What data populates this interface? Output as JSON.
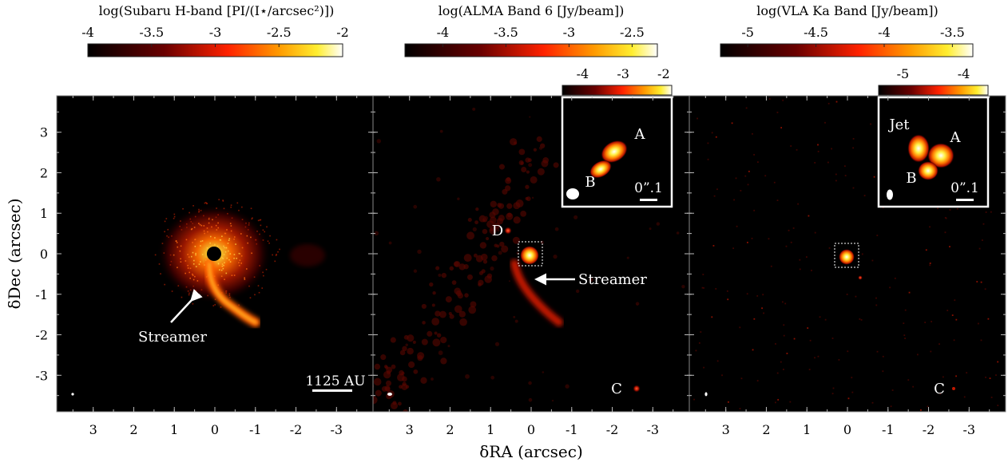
{
  "chart_data": [
    {
      "type": "heatmap",
      "panel": "Subaru H-band",
      "colorbar": {
        "label": "log(Subaru H-band [PI/(I⋆/arcsec²)])",
        "ticks": [
          "-4",
          "-3.5",
          "-3",
          "-2.5",
          "-2"
        ],
        "range": [
          -4,
          -2
        ]
      },
      "annotations": {
        "streamer": "Streamer",
        "scalebar": "1125 AU"
      },
      "xticks": [
        "3",
        "2",
        "1",
        "0",
        "-1",
        "-2",
        "-3"
      ],
      "yticks": [
        "3",
        "2",
        "1",
        "0",
        "-1",
        "-2",
        "-3"
      ],
      "ylabel": "δDec (arcsec)",
      "xlim": [
        3.9,
        -3.9
      ],
      "ylim": [
        -3.9,
        3.9
      ]
    },
    {
      "type": "heatmap",
      "panel": "ALMA Band 6",
      "colorbar": {
        "label": "log(ALMA Band 6 [Jy/beam])",
        "ticks": [
          "-4",
          "-3.5",
          "-3",
          "-2.5"
        ],
        "range": [
          -4.3,
          -2.3
        ]
      },
      "inset_colorbar": {
        "ticks": [
          "-4",
          "-3",
          "-2"
        ],
        "range": [
          -4.5,
          -1.8
        ]
      },
      "annotations": {
        "d": "D",
        "c": "C",
        "streamer": "Streamer",
        "a": "A",
        "b": "B",
        "inset_scale": "0”.1"
      },
      "xticks": [
        "3",
        "2",
        "1",
        "0",
        "-1",
        "-2",
        "-3"
      ],
      "xlabel": "δRA (arcsec)",
      "xlim": [
        3.9,
        -3.9
      ],
      "ylim": [
        -3.9,
        3.9
      ]
    },
    {
      "type": "heatmap",
      "panel": "VLA Ka Band",
      "colorbar": {
        "label": "log(VLA Ka Band [Jy/beam])",
        "ticks": [
          "-5",
          "-4.5",
          "-4",
          "-3.5"
        ],
        "range": [
          -5.2,
          -3.35
        ]
      },
      "inset_colorbar": {
        "ticks": [
          "-5",
          "-4"
        ],
        "range": [
          -5.4,
          -3.6
        ]
      },
      "annotations": {
        "jet": "Jet",
        "a": "A",
        "b": "B",
        "c": "C",
        "inset_scale": "0”.1"
      },
      "xticks": [
        "3",
        "2",
        "1",
        "0",
        "-1",
        "-2",
        "-3"
      ],
      "xlim": [
        3.9,
        -3.9
      ],
      "ylim": [
        -3.9,
        3.9
      ]
    }
  ]
}
